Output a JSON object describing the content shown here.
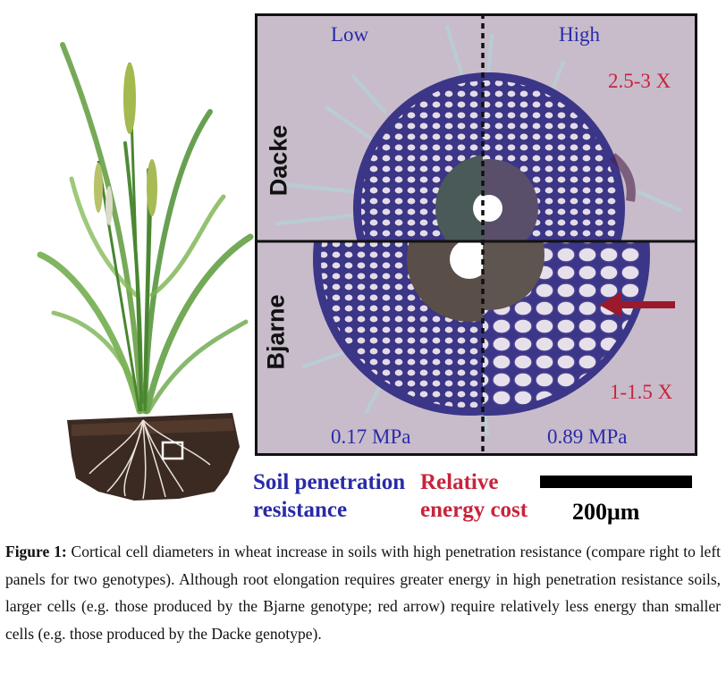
{
  "panel": {
    "column_low": "Low",
    "column_high": "High",
    "row_top": "Dacke",
    "row_bottom": "Bjarne",
    "ratio_top": "2.5-3 X",
    "ratio_bottom": "1-1.5 X",
    "pressure_low": "0.17 MPa",
    "pressure_high": "0.89 MPa"
  },
  "legend": {
    "soil": "Soil penetration resistance",
    "energy": "Relative energy cost",
    "scale": "200μm"
  },
  "caption": {
    "label": "Figure 1:",
    "text": "Cortical cell diameters in wheat increase in soils with high penetration resistance (compare right to left panels for two genotypes). Although root elongation requires greater energy in high penetration resistance soils, larger cells (e.g. those produced by the Bjarne genotype; red arrow) require relatively less energy than smaller cells (e.g. those produced by the Dacke genotype)."
  },
  "colors": {
    "blue_text": "#2a2aa8",
    "red_text": "#c8243c",
    "panel_bg": "#c8bccb",
    "cell_wall": "#3a3380",
    "arrow": "#9a1a2c"
  }
}
